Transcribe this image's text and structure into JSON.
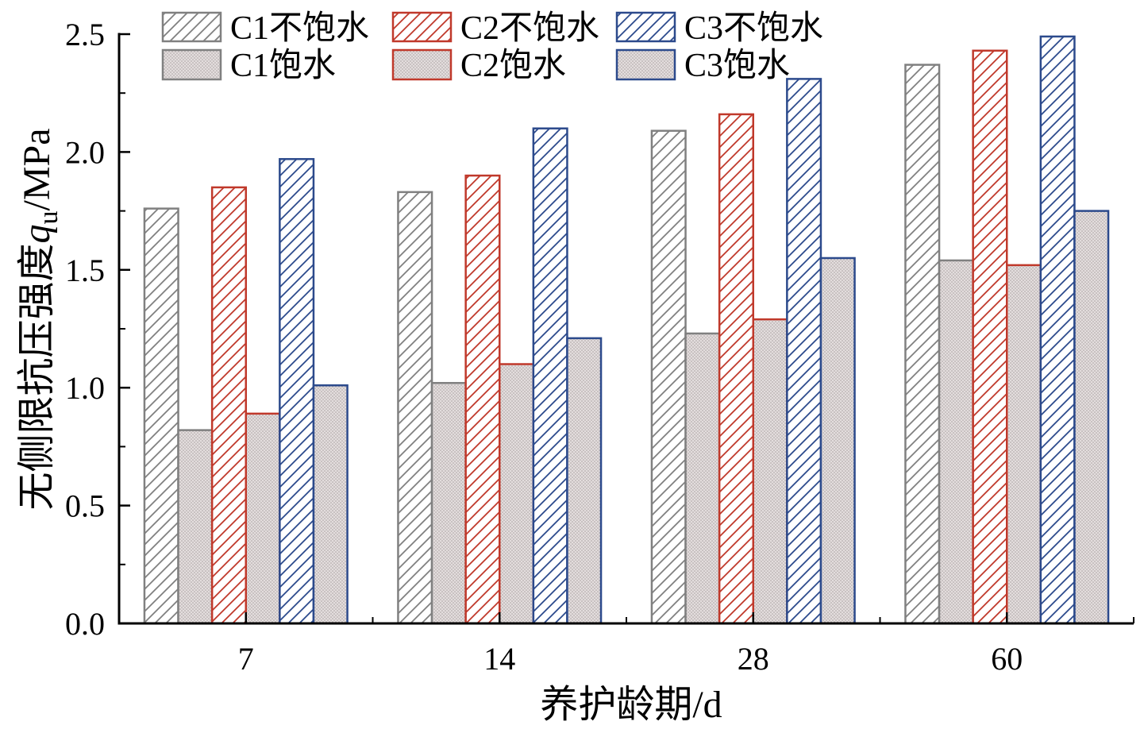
{
  "chart_data": {
    "type": "bar",
    "title": "",
    "xlabel": "养护龄期/d",
    "ylabel": {
      "text": "无侧限抗压强度",
      "symbol": "q",
      "subscript": "u",
      "unit": "/MPa"
    },
    "categories": [
      "7",
      "14",
      "28",
      "60"
    ],
    "ylim": [
      0,
      2.5
    ],
    "yticks": [
      0,
      0.5,
      1.0,
      1.5,
      2.0,
      2.5
    ],
    "ytick_labels": [
      "0.0",
      "0.5",
      "1.0",
      "1.5",
      "2.0",
      "2.5"
    ],
    "ytick_minor_step": 0.25,
    "grid": false,
    "legend_position": "top-left",
    "stipple": {
      "background": "#e3dddd",
      "dot": "#a59c9c"
    },
    "series": [
      {
        "name": "C1不饱水",
        "values": [
          1.76,
          1.83,
          2.09,
          2.37
        ],
        "color": "#808080",
        "hatched": true
      },
      {
        "name": "C1饱水",
        "values": [
          0.82,
          1.02,
          1.23,
          1.54
        ],
        "color": "#808080",
        "hatched": false
      },
      {
        "name": "C2不饱水",
        "values": [
          1.85,
          1.9,
          2.16,
          2.43
        ],
        "color": "#c0392b",
        "hatched": true
      },
      {
        "name": "C2饱水",
        "values": [
          0.89,
          1.1,
          1.29,
          1.52
        ],
        "color": "#c0392b",
        "hatched": false
      },
      {
        "name": "C3不饱水",
        "values": [
          1.97,
          2.1,
          2.31,
          2.49
        ],
        "color": "#2c4a8c",
        "hatched": true
      },
      {
        "name": "C3饱水",
        "values": [
          1.01,
          1.21,
          1.55,
          1.75
        ],
        "color": "#2c4a8c",
        "hatched": false
      }
    ]
  }
}
